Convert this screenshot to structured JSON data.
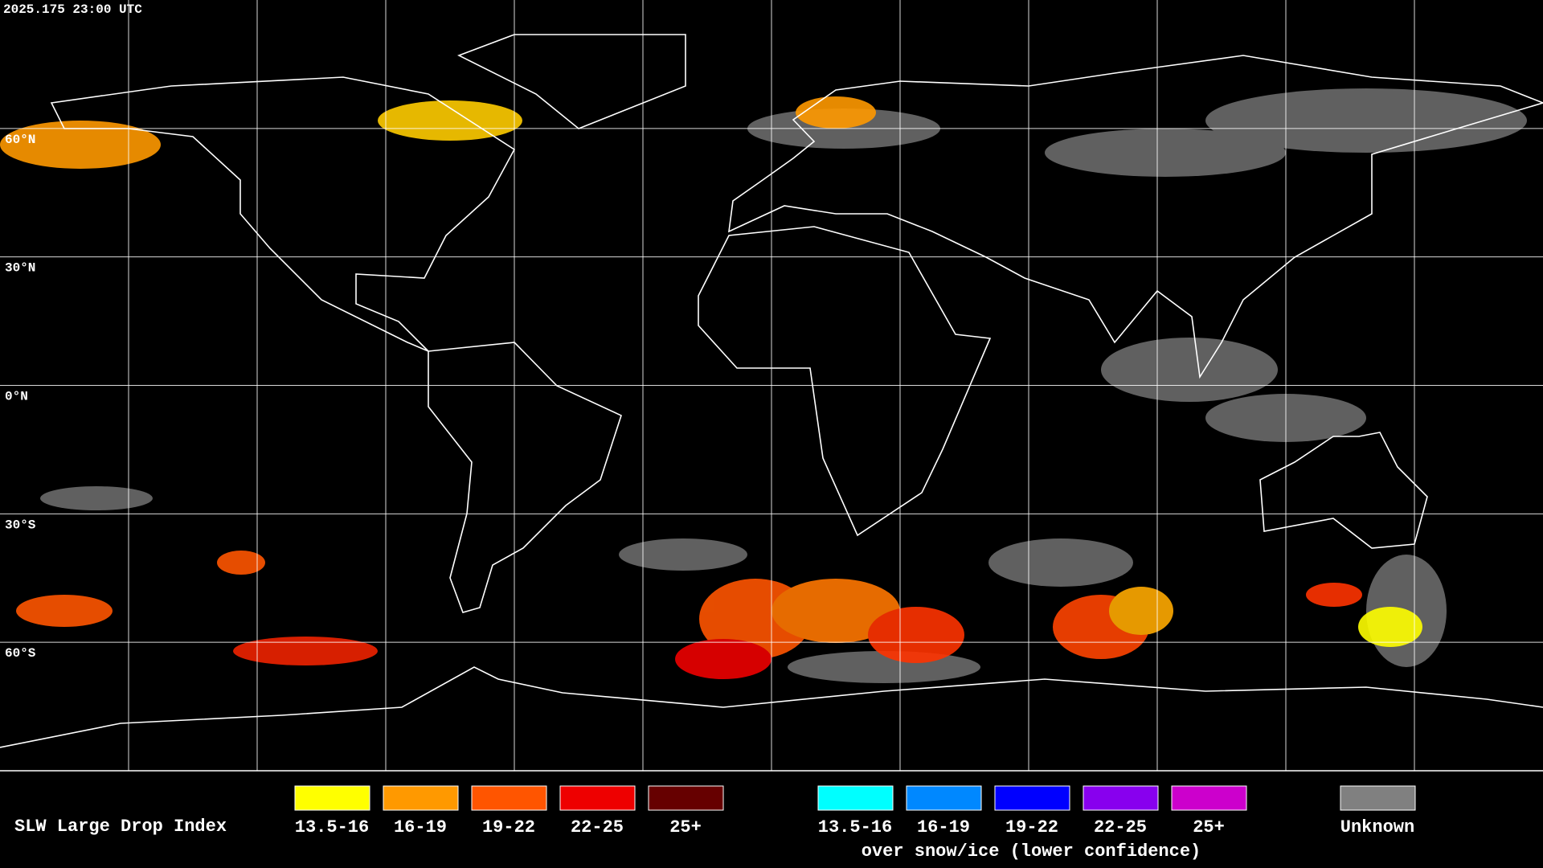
{
  "header": {
    "timestamp": "2025.175 23:00 UTC"
  },
  "map": {
    "latitude_labels": [
      "60°N",
      "30°N",
      "0°N",
      "30°S",
      "60°S"
    ]
  },
  "legend": {
    "title": "SLW Large Drop Index",
    "items": [
      {
        "label": "13.5-16",
        "color": "#ffff00"
      },
      {
        "label": "16-19",
        "color": "#ff9900"
      },
      {
        "label": "19-22",
        "color": "#ff5500"
      },
      {
        "label": "22-25",
        "color": "#ee0000"
      },
      {
        "label": "25+",
        "color": "#660000"
      }
    ],
    "snow_ice_items": [
      {
        "label": "13.5-16",
        "color": "#00ffff"
      },
      {
        "label": "16-19",
        "color": "#0088ff"
      },
      {
        "label": "19-22",
        "color": "#0000ff"
      },
      {
        "label": "22-25",
        "color": "#8800ee"
      },
      {
        "label": "25+",
        "color": "#cc00cc"
      }
    ],
    "snow_ice_caption": "over snow/ice (lower confidence)",
    "unknown": {
      "label": "Unknown",
      "color": "#808080"
    }
  }
}
